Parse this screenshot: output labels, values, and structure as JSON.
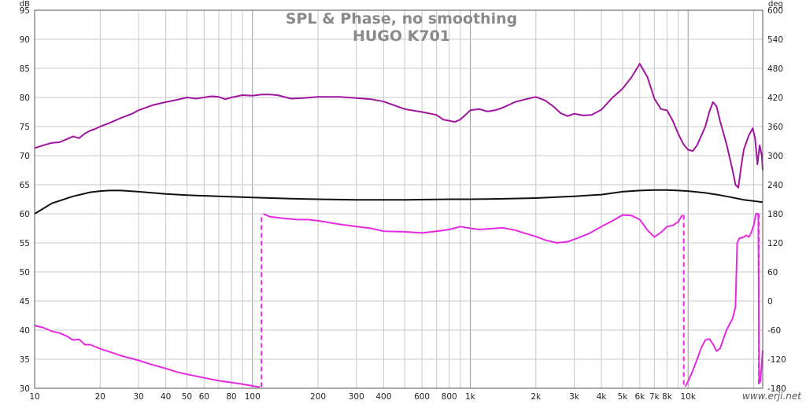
{
  "chart_data": {
    "type": "line",
    "title": "SPL & Phase, no smoothing",
    "subtitle": "HUGO K701",
    "y_left_unit": "dB",
    "y_right_unit": "deg",
    "x_scale": "log",
    "xlim": [
      10,
      22000
    ],
    "ylim_left": [
      30,
      95
    ],
    "ylim_right": [
      -180,
      600
    ],
    "grid": true,
    "x_ticks": [
      {
        "v": 10,
        "label": "10"
      },
      {
        "v": 20,
        "label": "20"
      },
      {
        "v": 30,
        "label": "30"
      },
      {
        "v": 40,
        "label": "40"
      },
      {
        "v": 50,
        "label": "50"
      },
      {
        "v": 60,
        "label": "60"
      },
      {
        "v": 80,
        "label": "80"
      },
      {
        "v": 100,
        "label": "100"
      },
      {
        "v": 200,
        "label": "200"
      },
      {
        "v": 300,
        "label": "300"
      },
      {
        "v": 400,
        "label": "400"
      },
      {
        "v": 600,
        "label": "600"
      },
      {
        "v": 800,
        "label": "800"
      },
      {
        "v": 1000,
        "label": "1k"
      },
      {
        "v": 2000,
        "label": "2k"
      },
      {
        "v": 3000,
        "label": "3k"
      },
      {
        "v": 4000,
        "label": "4k"
      },
      {
        "v": 5000,
        "label": "5k"
      },
      {
        "v": 6000,
        "label": "6k"
      },
      {
        "v": 7000,
        "label": "7k"
      },
      {
        "v": 8000,
        "label": "8k"
      },
      {
        "v": 10000,
        "label": "10k"
      }
    ],
    "y_left_ticks": [
      {
        "v": 95,
        "label": "95"
      },
      {
        "v": 90,
        "label": "90"
      },
      {
        "v": 85,
        "label": "85"
      },
      {
        "v": 80,
        "label": "80"
      },
      {
        "v": 75,
        "label": "75"
      },
      {
        "v": 70,
        "label": "70"
      },
      {
        "v": 65,
        "label": "65"
      },
      {
        "v": 60,
        "label": "60"
      },
      {
        "v": 55,
        "label": "55"
      },
      {
        "v": 50,
        "label": "50"
      },
      {
        "v": 45,
        "label": "45"
      },
      {
        "v": 40,
        "label": "40"
      },
      {
        "v": 35,
        "label": "35"
      },
      {
        "v": 30,
        "label": "30"
      }
    ],
    "y_right_ticks": [
      {
        "v": 600,
        "label": "600"
      },
      {
        "v": 540,
        "label": "540"
      },
      {
        "v": 480,
        "label": "480"
      },
      {
        "v": 420,
        "label": "420"
      },
      {
        "v": 360,
        "label": "360"
      },
      {
        "v": 300,
        "label": "300"
      },
      {
        "v": 240,
        "label": "240"
      },
      {
        "v": 180,
        "label": "180"
      },
      {
        "v": 120,
        "label": "120"
      },
      {
        "v": 60,
        "label": "60"
      },
      {
        "v": 0,
        "label": "0"
      },
      {
        "v": -60,
        "label": "-60"
      },
      {
        "v": -120,
        "label": "-120"
      },
      {
        "v": -180,
        "label": "-180"
      }
    ],
    "series": [
      {
        "color": "#a0159e",
        "width": 2,
        "axis": "left",
        "points": [
          [
            10,
            71.3
          ],
          [
            11,
            71.8
          ],
          [
            12,
            72.2
          ],
          [
            13,
            72.3
          ],
          [
            14,
            72.8
          ],
          [
            15,
            73.3
          ],
          [
            16,
            73.0
          ],
          [
            17,
            73.8
          ],
          [
            18,
            74.3
          ],
          [
            19,
            74.6
          ],
          [
            20,
            75.0
          ],
          [
            22,
            75.6
          ],
          [
            25,
            76.5
          ],
          [
            28,
            77.2
          ],
          [
            30,
            77.8
          ],
          [
            35,
            78.7
          ],
          [
            40,
            79.2
          ],
          [
            45,
            79.6
          ],
          [
            50,
            80.0
          ],
          [
            55,
            79.8
          ],
          [
            60,
            80.0
          ],
          [
            65,
            80.2
          ],
          [
            70,
            80.1
          ],
          [
            75,
            79.7
          ],
          [
            80,
            80.0
          ],
          [
            90,
            80.4
          ],
          [
            100,
            80.3
          ],
          [
            110,
            80.5
          ],
          [
            120,
            80.5
          ],
          [
            130,
            80.4
          ],
          [
            150,
            79.8
          ],
          [
            170,
            79.9
          ],
          [
            200,
            80.1
          ],
          [
            250,
            80.1
          ],
          [
            300,
            79.9
          ],
          [
            350,
            79.7
          ],
          [
            400,
            79.3
          ],
          [
            500,
            78.0
          ],
          [
            600,
            77.5
          ],
          [
            700,
            77.0
          ],
          [
            750,
            76.2
          ],
          [
            800,
            76.0
          ],
          [
            850,
            75.8
          ],
          [
            900,
            76.2
          ],
          [
            950,
            77.0
          ],
          [
            1000,
            77.8
          ],
          [
            1100,
            78.0
          ],
          [
            1200,
            77.6
          ],
          [
            1300,
            77.8
          ],
          [
            1400,
            78.2
          ],
          [
            1500,
            78.7
          ],
          [
            1600,
            79.2
          ],
          [
            1800,
            79.7
          ],
          [
            2000,
            80.1
          ],
          [
            2200,
            79.5
          ],
          [
            2400,
            78.5
          ],
          [
            2600,
            77.3
          ],
          [
            2800,
            76.8
          ],
          [
            3000,
            77.2
          ],
          [
            3300,
            76.9
          ],
          [
            3600,
            77.0
          ],
          [
            4000,
            77.9
          ],
          [
            4500,
            80.0
          ],
          [
            5000,
            81.5
          ],
          [
            5500,
            83.5
          ],
          [
            6000,
            85.8
          ],
          [
            6500,
            83.5
          ],
          [
            7000,
            79.8
          ],
          [
            7500,
            78.0
          ],
          [
            8000,
            77.8
          ],
          [
            8500,
            76.0
          ],
          [
            9000,
            73.8
          ],
          [
            9500,
            72.0
          ],
          [
            10000,
            71.0
          ],
          [
            10500,
            70.8
          ],
          [
            11000,
            71.8
          ],
          [
            12000,
            75.0
          ],
          [
            12500,
            77.5
          ],
          [
            13000,
            79.2
          ],
          [
            13500,
            78.5
          ],
          [
            14000,
            76.0
          ],
          [
            15000,
            72.0
          ],
          [
            16000,
            67.5
          ],
          [
            16500,
            65.0
          ],
          [
            17000,
            64.5
          ],
          [
            17500,
            68.0
          ],
          [
            18000,
            71.0
          ],
          [
            19000,
            73.5
          ],
          [
            19800,
            74.7
          ],
          [
            20300,
            73.0
          ],
          [
            20800,
            68.5
          ],
          [
            21300,
            71.8
          ],
          [
            21800,
            70.0
          ],
          [
            22000,
            67.5
          ]
        ]
      },
      {
        "color": "#111111",
        "width": 2,
        "axis": "left",
        "points": [
          [
            10,
            60.0
          ],
          [
            12,
            61.8
          ],
          [
            15,
            63.0
          ],
          [
            18,
            63.7
          ],
          [
            20,
            63.9
          ],
          [
            22,
            64.0
          ],
          [
            25,
            64.0
          ],
          [
            30,
            63.8
          ],
          [
            40,
            63.4
          ],
          [
            50,
            63.2
          ],
          [
            70,
            63.0
          ],
          [
            100,
            62.8
          ],
          [
            150,
            62.6
          ],
          [
            200,
            62.5
          ],
          [
            300,
            62.4
          ],
          [
            500,
            62.4
          ],
          [
            800,
            62.5
          ],
          [
            1000,
            62.5
          ],
          [
            1500,
            62.6
          ],
          [
            2000,
            62.7
          ],
          [
            3000,
            63.0
          ],
          [
            4000,
            63.3
          ],
          [
            5000,
            63.8
          ],
          [
            6000,
            64.0
          ],
          [
            7000,
            64.1
          ],
          [
            8000,
            64.1
          ],
          [
            9000,
            64.0
          ],
          [
            10000,
            63.9
          ],
          [
            12000,
            63.6
          ],
          [
            14000,
            63.2
          ],
          [
            16000,
            62.8
          ],
          [
            18000,
            62.4
          ],
          [
            20000,
            62.2
          ],
          [
            22000,
            62.0
          ]
        ]
      },
      {
        "color": "#e52ae2",
        "width": 2,
        "axis": "left",
        "points": [
          [
            10,
            40.8
          ],
          [
            11,
            40.4
          ],
          [
            12,
            39.8
          ],
          [
            13,
            39.5
          ],
          [
            14,
            39.0
          ],
          [
            15,
            38.3
          ],
          [
            16,
            38.4
          ],
          [
            17,
            37.5
          ],
          [
            18,
            37.5
          ],
          [
            20,
            36.8
          ],
          [
            22,
            36.3
          ],
          [
            25,
            35.6
          ],
          [
            30,
            34.8
          ],
          [
            35,
            34.0
          ],
          [
            40,
            33.4
          ],
          [
            45,
            32.8
          ],
          [
            50,
            32.4
          ],
          [
            60,
            31.8
          ],
          [
            70,
            31.3
          ],
          [
            80,
            31.0
          ],
          [
            90,
            30.7
          ],
          [
            100,
            30.4
          ],
          [
            108,
            30.2
          ]
        ]
      },
      {
        "color": "#e52ae2",
        "width": 2,
        "axis": "left",
        "points": [
          [
            112,
            60.0
          ],
          [
            120,
            59.5
          ],
          [
            140,
            59.2
          ],
          [
            160,
            59.0
          ],
          [
            180,
            59.0
          ],
          [
            200,
            58.8
          ],
          [
            250,
            58.2
          ],
          [
            300,
            57.8
          ],
          [
            350,
            57.5
          ],
          [
            400,
            57.0
          ],
          [
            500,
            56.9
          ],
          [
            600,
            56.7
          ],
          [
            700,
            57.0
          ],
          [
            800,
            57.3
          ],
          [
            900,
            57.8
          ],
          [
            1000,
            57.5
          ],
          [
            1100,
            57.3
          ],
          [
            1200,
            57.4
          ],
          [
            1400,
            57.6
          ],
          [
            1600,
            57.2
          ],
          [
            1800,
            56.6
          ],
          [
            2000,
            56.1
          ],
          [
            2200,
            55.5
          ],
          [
            2500,
            55.0
          ],
          [
            2800,
            55.2
          ],
          [
            3000,
            55.6
          ],
          [
            3500,
            56.6
          ],
          [
            4000,
            57.8
          ],
          [
            4500,
            58.8
          ],
          [
            5000,
            59.8
          ],
          [
            5500,
            59.7
          ],
          [
            6000,
            59.0
          ],
          [
            6500,
            57.2
          ],
          [
            7000,
            56.0
          ],
          [
            7500,
            56.8
          ],
          [
            8000,
            57.8
          ],
          [
            8500,
            58.0
          ],
          [
            9000,
            58.6
          ],
          [
            9400,
            59.8
          ]
        ]
      },
      {
        "color": "#e52ae2",
        "width": 2,
        "axis": "left",
        "points": [
          [
            9700,
            30.3
          ],
          [
            10000,
            31.2
          ],
          [
            10500,
            33.0
          ],
          [
            11000,
            35.0
          ],
          [
            11500,
            37.0
          ],
          [
            12000,
            38.3
          ],
          [
            12500,
            38.5
          ],
          [
            13000,
            37.6
          ],
          [
            13500,
            36.4
          ],
          [
            14000,
            36.8
          ],
          [
            15000,
            40.0
          ],
          [
            16000,
            42.0
          ],
          [
            16500,
            44.0
          ],
          [
            16800,
            55.0
          ],
          [
            17200,
            55.8
          ],
          [
            18000,
            56.0
          ],
          [
            18500,
            56.3
          ],
          [
            19000,
            56.0
          ],
          [
            19500,
            56.8
          ],
          [
            20000,
            58.0
          ],
          [
            20500,
            60.0
          ],
          [
            21000,
            60.0
          ],
          [
            21200,
            30.8
          ],
          [
            21500,
            31.3
          ],
          [
            22000,
            36.5
          ]
        ]
      }
    ],
    "dashed_jumps": [
      {
        "x": 110,
        "y1": 30.2,
        "y2": 60.0,
        "color": "#e52ae2"
      },
      {
        "x": 9550,
        "y1": 59.8,
        "y2": 30.3,
        "color": "#e52ae2"
      },
      {
        "x": 21100,
        "y1": 60.0,
        "y2": 30.8,
        "color": "#e52ae2"
      }
    ]
  },
  "watermark": "www.erji.net"
}
